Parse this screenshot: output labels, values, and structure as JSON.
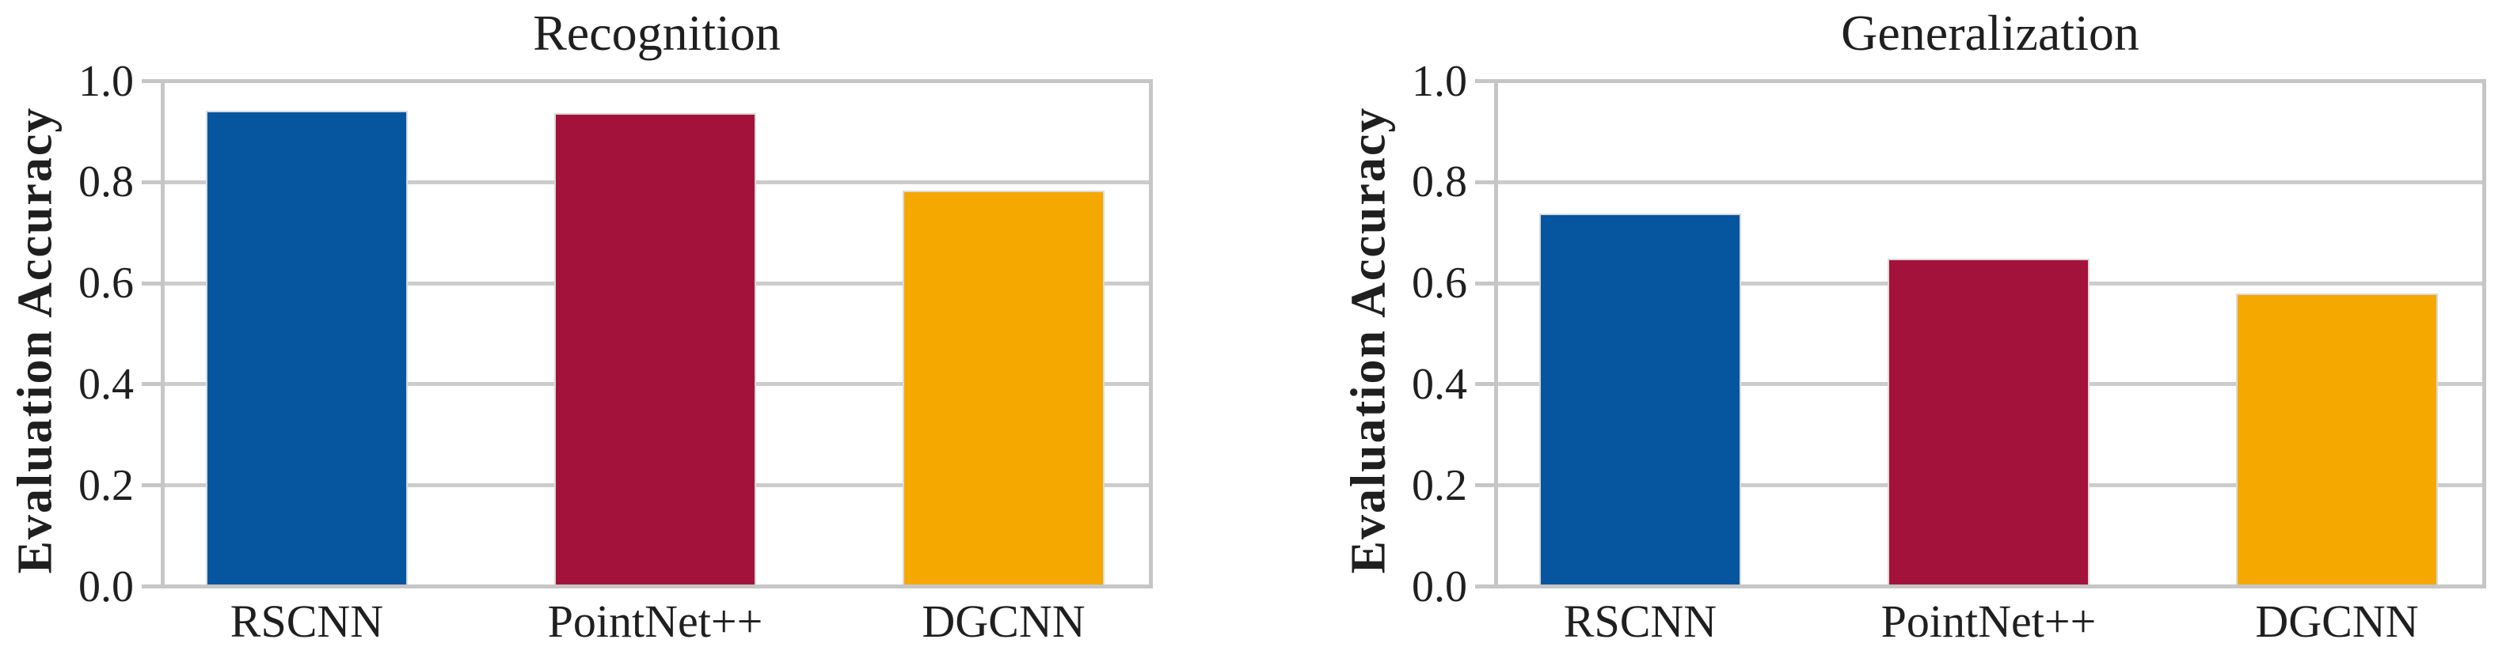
{
  "figure": {
    "text_color": "#1f1f1f",
    "grid_color": "#cccccc",
    "frame_color": "#c6c6c6",
    "background_color": "#ffffff"
  },
  "chart_data": [
    {
      "type": "bar",
      "title": "Recognition",
      "xlabel": "",
      "ylabel": "Evaluation Accuracy",
      "categories": [
        "RSCNN",
        "PointNet++",
        "DGCNN"
      ],
      "values": [
        0.945,
        0.94,
        0.785
      ],
      "bar_colors": [
        "#05559f",
        "#a3123a",
        "#f5a800"
      ],
      "ylim": [
        0.0,
        1.0
      ],
      "yticks": [
        0.0,
        0.2,
        0.4,
        0.6,
        0.8,
        1.0
      ],
      "grid": true,
      "legend": "none"
    },
    {
      "type": "bar",
      "title": "Generalization",
      "xlabel": "",
      "ylabel": "Evaluation Accuracy",
      "categories": [
        "RSCNN",
        "PointNet++",
        "DGCNN"
      ],
      "values": [
        0.74,
        0.65,
        0.58
      ],
      "bar_colors": [
        "#05559f",
        "#a3123a",
        "#f5a800"
      ],
      "ylim": [
        0.0,
        1.0
      ],
      "yticks": [
        0.0,
        0.2,
        0.4,
        0.6,
        0.8,
        1.0
      ],
      "grid": true,
      "legend": "none"
    }
  ]
}
